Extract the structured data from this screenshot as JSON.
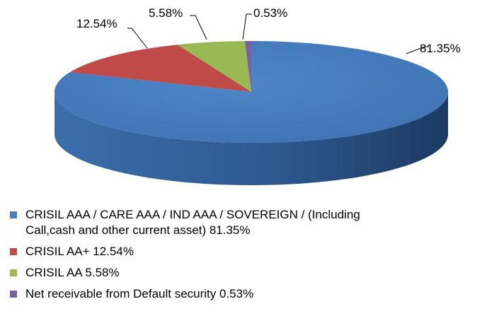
{
  "chart_data": {
    "type": "pie",
    "style": "3d",
    "slices": [
      {
        "label": "CRISIL AAA / CARE AAA / IND AAA / SOVEREIGN /  (Including Call,cash and other current asset)",
        "value": 81.35,
        "display": "81.35%",
        "color": "#4A7EBB"
      },
      {
        "label": "CRISIL AA+",
        "value": 12.54,
        "display": "12.54%",
        "color": "#BE4B48"
      },
      {
        "label": "CRISIL AA",
        "value": 5.58,
        "display": "5.58%",
        "color": "#98B954"
      },
      {
        "label": "Net receivable from Default security",
        "value": 0.53,
        "display": "0.53%",
        "color": "#7D60A0"
      }
    ],
    "legend_position": "bottom"
  },
  "legend": [
    {
      "line1": "CRISIL AAA / CARE AAA / IND AAA / SOVEREIGN /  (Including",
      "line2": "Call,cash and other current asset)  81.35%"
    },
    {
      "line1": "CRISIL AA+  12.54%"
    },
    {
      "line1": "CRISIL AA  5.58%"
    },
    {
      "line1": "Net receivable from Default security 0.53%"
    }
  ]
}
